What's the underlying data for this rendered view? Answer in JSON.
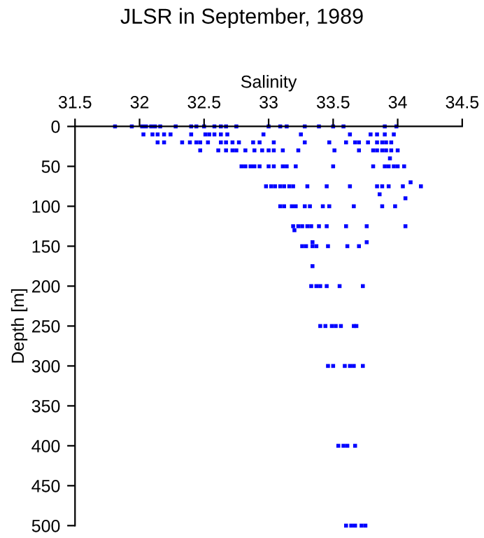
{
  "chart_data": {
    "type": "scatter",
    "title": "JLSR in September, 1989",
    "xlabel": "Salinity",
    "ylabel": "Depth [m]",
    "xlim": [
      31.5,
      34.5
    ],
    "xticks": [
      31.5,
      32,
      32.5,
      33,
      33.5,
      34,
      34.5
    ],
    "ylim": [
      500,
      0
    ],
    "yticks": [
      0,
      50,
      100,
      150,
      200,
      250,
      300,
      350,
      400,
      450,
      500
    ],
    "grid": false,
    "marker": "square",
    "series": [
      {
        "color": "#0000ff",
        "x": [
          31.81,
          31.94,
          32.02,
          32.05,
          32.09,
          32.12,
          32.16,
          32.28,
          32.4,
          32.44,
          32.5,
          32.58,
          32.63,
          32.67,
          32.75,
          33.0,
          33.09,
          33.14,
          33.28,
          33.39,
          33.5,
          33.58,
          33.9,
          33.99,
          32.03,
          32.1,
          32.14,
          32.19,
          32.24,
          32.4,
          32.51,
          32.54,
          32.58,
          32.63,
          32.68,
          32.96,
          33.25,
          33.63,
          33.79,
          33.84,
          33.9,
          33.97,
          32.14,
          32.19,
          32.33,
          32.39,
          32.44,
          32.47,
          32.53,
          32.63,
          32.67,
          32.72,
          32.77,
          32.88,
          32.93,
          33.04,
          33.28,
          33.47,
          33.6,
          33.67,
          33.7,
          33.77,
          33.84,
          33.88,
          33.91,
          33.95,
          32.47,
          32.61,
          32.67,
          32.72,
          32.75,
          32.82,
          32.89,
          32.95,
          33.0,
          33.04,
          33.11,
          33.23,
          33.51,
          33.7,
          33.81,
          33.84,
          33.88,
          33.91,
          33.95,
          34.0,
          33.94,
          32.79,
          32.82,
          32.86,
          32.89,
          32.93,
          33.0,
          33.04,
          33.11,
          33.14,
          33.21,
          33.5,
          33.81,
          33.9,
          33.93,
          33.97,
          34.0,
          34.05,
          34.1,
          32.98,
          33.02,
          33.05,
          33.09,
          33.12,
          33.16,
          33.19,
          33.3,
          33.45,
          33.63,
          33.84,
          33.88,
          33.93,
          34.04,
          34.18,
          33.86,
          34.06,
          33.09,
          33.12,
          33.18,
          33.21,
          33.28,
          33.32,
          33.42,
          33.47,
          33.66,
          33.88,
          33.98,
          33.19,
          33.23,
          33.26,
          33.3,
          33.33,
          33.39,
          33.45,
          33.6,
          33.76,
          34.06,
          33.2,
          33.34,
          33.76,
          33.26,
          33.29,
          33.34,
          33.37,
          33.46,
          33.61,
          33.7,
          33.34,
          33.33,
          33.37,
          33.4,
          33.45,
          33.55,
          33.73,
          33.4,
          33.44,
          33.49,
          33.52,
          33.56,
          33.66,
          33.68,
          33.46,
          33.5,
          33.59,
          33.63,
          33.66,
          33.73,
          33.54,
          33.58,
          33.61,
          33.67,
          33.6,
          33.64,
          33.67,
          33.72,
          33.75
        ],
        "values": [
          0,
          0,
          0,
          0,
          0,
          0,
          0,
          0,
          0,
          0,
          0,
          0,
          0,
          0,
          0,
          0,
          0,
          0,
          0,
          0,
          0,
          0,
          0,
          0,
          10,
          10,
          10,
          10,
          10,
          10,
          10,
          10,
          10,
          10,
          10,
          10,
          10,
          10,
          10,
          10,
          10,
          10,
          20,
          20,
          20,
          20,
          20,
          20,
          20,
          20,
          20,
          20,
          20,
          20,
          20,
          20,
          20,
          20,
          20,
          20,
          20,
          20,
          20,
          20,
          20,
          20,
          30,
          30,
          30,
          30,
          30,
          30,
          30,
          30,
          30,
          30,
          30,
          30,
          30,
          30,
          30,
          30,
          30,
          30,
          30,
          30,
          40,
          50,
          50,
          50,
          50,
          50,
          50,
          50,
          50,
          50,
          50,
          50,
          50,
          50,
          50,
          50,
          50,
          50,
          70,
          75,
          75,
          75,
          75,
          75,
          75,
          75,
          75,
          75,
          75,
          75,
          75,
          75,
          75,
          75,
          85,
          90,
          100,
          100,
          100,
          100,
          100,
          100,
          100,
          100,
          100,
          100,
          100,
          125,
          125,
          125,
          125,
          125,
          125,
          125,
          125,
          125,
          125,
          130,
          145,
          145,
          150,
          150,
          150,
          150,
          150,
          150,
          150,
          175,
          200,
          200,
          200,
          200,
          200,
          200,
          250,
          250,
          250,
          250,
          250,
          250,
          250,
          300,
          300,
          300,
          300,
          300,
          300,
          400,
          400,
          400,
          400,
          500,
          500,
          500,
          500,
          500
        ]
      }
    ]
  }
}
